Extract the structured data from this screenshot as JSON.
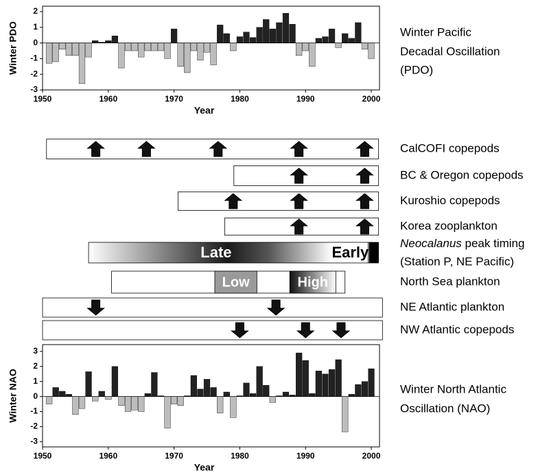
{
  "chart_data": [
    {
      "type": "bar",
      "y_label": "Winter PDO",
      "x_label": "Year",
      "side_label": [
        "Winter Pacific",
        "Decadal Oscillation",
        "(PDO)"
      ],
      "positive_color": "#222222",
      "negative_color": "#bdbdbd",
      "xlim": [
        1950,
        2001.25
      ],
      "xticks": [
        1950,
        1960,
        1970,
        1980,
        1990,
        2000
      ],
      "ylim": [
        -3,
        2.35
      ],
      "yticks": [
        -3,
        -2,
        -1,
        0,
        1,
        2
      ],
      "x": [
        1951,
        1952,
        1953,
        1954,
        1955,
        1956,
        1957,
        1958,
        1959,
        1960,
        1961,
        1962,
        1963,
        1964,
        1965,
        1966,
        1967,
        1968,
        1969,
        1970,
        1971,
        1972,
        1973,
        1974,
        1975,
        1976,
        1977,
        1978,
        1979,
        1980,
        1981,
        1982,
        1983,
        1984,
        1985,
        1986,
        1987,
        1988,
        1989,
        1990,
        1991,
        1992,
        1993,
        1994,
        1995,
        1996,
        1997,
        1998,
        1999,
        2000
      ],
      "values": [
        -1.3,
        -1.2,
        -0.4,
        -0.8,
        -0.8,
        -2.6,
        -0.9,
        0.15,
        0.05,
        0.15,
        0.45,
        -1.6,
        -0.5,
        -0.5,
        -0.9,
        -0.5,
        -0.5,
        -0.5,
        -1.0,
        0.9,
        -1.5,
        -1.9,
        -0.5,
        -1.1,
        -0.6,
        -1.4,
        1.15,
        0.6,
        -0.5,
        0.4,
        0.7,
        0.35,
        1.0,
        1.5,
        0.9,
        1.3,
        1.9,
        1.2,
        -0.8,
        -0.5,
        -1.5,
        0.3,
        0.4,
        0.9,
        -0.3,
        0.6,
        0.3,
        1.3,
        -0.4,
        -1.0
      ]
    },
    {
      "type": "bar",
      "y_label": "Winter NAO",
      "x_label": "Year",
      "side_label": [
        "Winter North Atlantic",
        "Oscillation (NAO)"
      ],
      "positive_color": "#222222",
      "negative_color": "#bdbdbd",
      "xlim": [
        1950,
        2001.25
      ],
      "xticks": [
        1950,
        1960,
        1970,
        1980,
        1990,
        2000
      ],
      "ylim": [
        -3.35,
        3.45
      ],
      "yticks": [
        -3,
        -2,
        -1,
        0,
        1,
        2,
        3
      ],
      "x": [
        1951,
        1952,
        1953,
        1954,
        1955,
        1956,
        1957,
        1958,
        1959,
        1960,
        1961,
        1962,
        1963,
        1964,
        1965,
        1966,
        1967,
        1968,
        1969,
        1970,
        1971,
        1972,
        1973,
        1974,
        1975,
        1976,
        1977,
        1978,
        1979,
        1980,
        1981,
        1982,
        1983,
        1984,
        1985,
        1986,
        1987,
        1988,
        1989,
        1990,
        1991,
        1992,
        1993,
        1994,
        1995,
        1996,
        1997,
        1998,
        1999,
        2000
      ],
      "values": [
        -0.5,
        0.6,
        0.35,
        0.15,
        -1.2,
        -0.8,
        1.65,
        -0.3,
        0.35,
        -0.2,
        2.0,
        -0.6,
        -1.0,
        -0.9,
        -1.0,
        0.2,
        1.6,
        0.05,
        -2.1,
        -0.5,
        -0.6,
        0.05,
        1.4,
        0.5,
        1.15,
        0.6,
        -1.1,
        0.3,
        -1.4,
        0.05,
        0.9,
        0.2,
        2.0,
        0.75,
        -0.4,
        0.05,
        0.3,
        0.1,
        2.9,
        2.4,
        0.2,
        1.7,
        1.5,
        1.8,
        2.45,
        -2.35,
        0.15,
        0.8,
        1.0,
        1.85
      ]
    }
  ],
  "rows": [
    {
      "label": [
        "CalCOFI copepods"
      ],
      "start": 1950.6,
      "end": 2001.1,
      "direction": "up",
      "arrows": [
        1958.1,
        1965.8,
        1976.7,
        1989,
        1999
      ]
    },
    {
      "label": [
        "BC & Oregon copepods"
      ],
      "start": 1979.1,
      "end": 2001.1,
      "direction": "up",
      "arrows": [
        1989,
        1999
      ]
    },
    {
      "label": [
        "Kuroshio copepods"
      ],
      "start": 1970.6,
      "end": 2001.1,
      "direction": "up",
      "arrows": [
        1979,
        1989,
        1999
      ]
    },
    {
      "label": [
        "Korea zooplankton"
      ],
      "start": 1977.7,
      "end": 2001.1,
      "direction": "up",
      "arrows": [
        1989,
        1999
      ]
    },
    {
      "label": [
        "Neocalanus",
        " peak timing",
        "(Station P, NE Pacific)"
      ],
      "start": 1957,
      "end": 2001.1,
      "band_labels": [
        "Late",
        "Early"
      ]
    },
    {
      "label": [
        "North Sea plankton"
      ],
      "start": 1960.5,
      "end": 1996,
      "segments": [
        {
          "label": "Low",
          "start": 1976.2,
          "end": 1982.6
        },
        {
          "label": "High",
          "start": 1987.6,
          "end": 1994.6
        }
      ]
    },
    {
      "label": [
        "NE Atlantic plankton"
      ],
      "start": 1950,
      "end": 2001.7,
      "direction": "down",
      "arrows": [
        1958.1,
        1985.5
      ]
    },
    {
      "label": [
        "NW Atlantic copepods"
      ],
      "start": 1950,
      "end": 2001.7,
      "direction": "down",
      "arrows": [
        1980,
        1990,
        1995.4
      ]
    }
  ]
}
